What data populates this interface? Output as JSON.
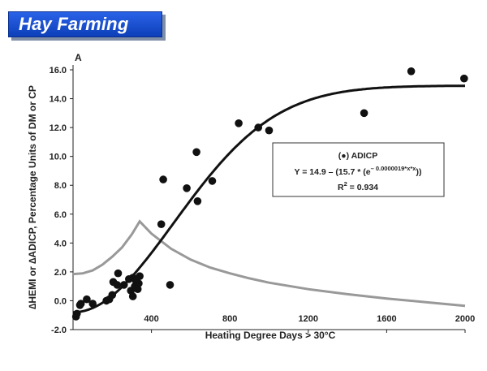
{
  "header": {
    "title": "Hay Farming"
  },
  "chart_data": {
    "type": "scatter",
    "panel_label": "A",
    "xlabel": "Heating Degree Days > 30°C",
    "ylabel": "∆HEMI or ∆ADICP, Percentage Units of DM or CP",
    "xlim": [
      0,
      2000
    ],
    "ylim": [
      -2.0,
      16.0
    ],
    "x_ticks": [
      "400",
      "800",
      "1200",
      "1600",
      "2000"
    ],
    "x_tick_values": [
      400,
      800,
      1200,
      1600,
      2000
    ],
    "y_ticks": [
      "-2.0",
      "0.0",
      "2.0",
      "4.0",
      "6.0",
      "8.0",
      "10.0",
      "12.0",
      "14.0",
      "16.0"
    ],
    "y_tick_values": [
      -2,
      0,
      2,
      4,
      6,
      8,
      10,
      12,
      14,
      16
    ],
    "series": [
      {
        "name": "ADICP",
        "type": "scatter",
        "points": [
          [
            15,
            -1.1
          ],
          [
            20,
            -0.9
          ],
          [
            35,
            -0.3
          ],
          [
            40,
            -0.2
          ],
          [
            70,
            0.1
          ],
          [
            100,
            -0.2
          ],
          [
            170,
            0.0
          ],
          [
            185,
            0.1
          ],
          [
            200,
            0.4
          ],
          [
            205,
            1.3
          ],
          [
            225,
            1.1
          ],
          [
            230,
            1.9
          ],
          [
            260,
            1.1
          ],
          [
            285,
            1.5
          ],
          [
            295,
            0.7
          ],
          [
            305,
            0.3
          ],
          [
            305,
            1.6
          ],
          [
            315,
            1.0
          ],
          [
            320,
            1.4
          ],
          [
            330,
            0.8
          ],
          [
            335,
            1.2
          ],
          [
            340,
            1.7
          ],
          [
            450,
            5.3
          ],
          [
            460,
            8.4
          ],
          [
            495,
            1.1
          ],
          [
            580,
            7.8
          ],
          [
            630,
            10.3
          ],
          [
            635,
            6.9
          ],
          [
            710,
            8.3
          ],
          [
            845,
            12.3
          ],
          [
            945,
            12.0
          ],
          [
            1000,
            11.8
          ],
          [
            1485,
            13.0
          ],
          [
            1725,
            15.9
          ],
          [
            1995,
            15.4
          ]
        ],
        "color": "#111111"
      },
      {
        "name": "fit",
        "type": "line",
        "color": "#111111"
      },
      {
        "name": "HEMI",
        "type": "line",
        "points": [
          [
            0,
            1.85
          ],
          [
            50,
            1.9
          ],
          [
            100,
            2.1
          ],
          [
            150,
            2.5
          ],
          [
            200,
            3.05
          ],
          [
            250,
            3.7
          ],
          [
            300,
            4.6
          ],
          [
            340,
            5.5
          ],
          [
            400,
            4.65
          ],
          [
            500,
            3.6
          ],
          [
            600,
            2.85
          ],
          [
            700,
            2.3
          ],
          [
            800,
            1.9
          ],
          [
            900,
            1.55
          ],
          [
            1000,
            1.25
          ],
          [
            1200,
            0.8
          ],
          [
            1400,
            0.45
          ],
          [
            1600,
            0.15
          ],
          [
            1800,
            -0.1
          ],
          [
            2000,
            -0.35
          ]
        ],
        "color": "#999999"
      }
    ],
    "legend": {
      "marker": "●",
      "title": "ADICP",
      "equation_prefix": "Y = 14.9 – (15.7 * (e",
      "exponent": "– 0.0000019*x*x",
      "equation_suffix": "))",
      "r2_label": "R",
      "r2_sup": "2",
      "r2_value": " = 0.934",
      "position": "middle-right"
    },
    "fit_equation": {
      "a": 14.9,
      "b": 15.7,
      "k": 1.9e-06
    }
  }
}
